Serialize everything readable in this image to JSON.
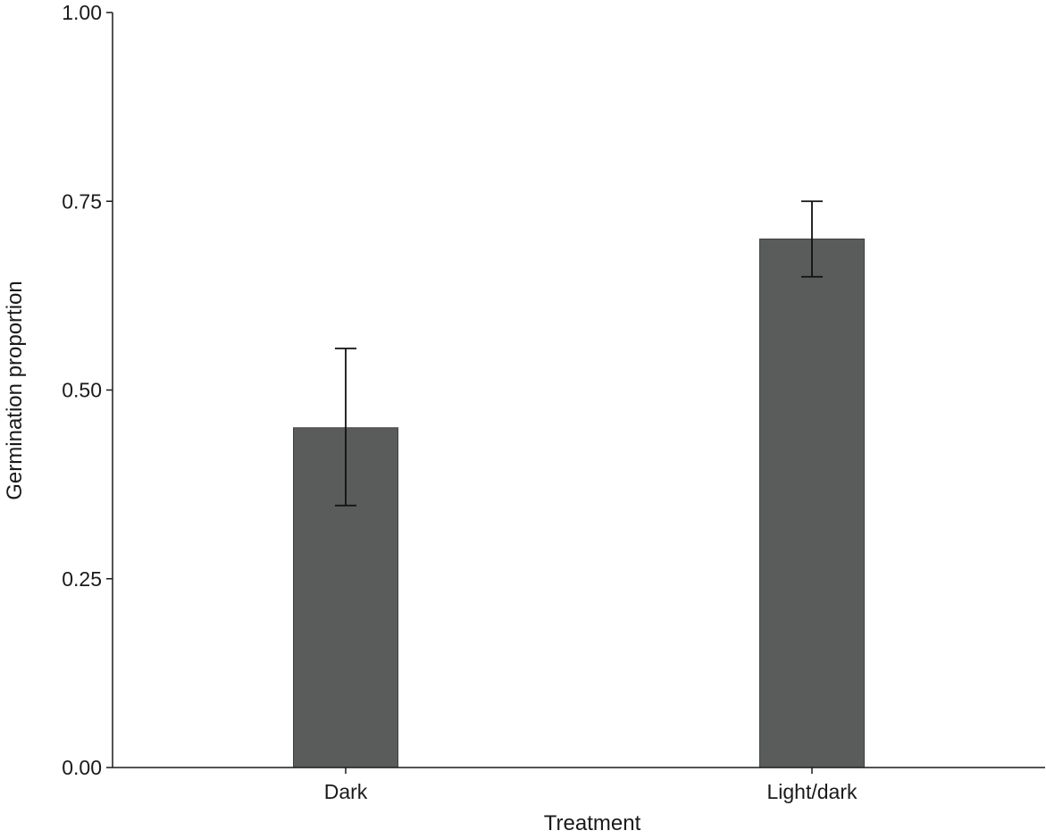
{
  "chart_data": {
    "type": "bar",
    "title": "",
    "xlabel": "Treatment",
    "ylabel": "Germination proportion",
    "categories": [
      "Dark",
      "Light/dark"
    ],
    "values": [
      0.45,
      0.7
    ],
    "error_lower": [
      0.347,
      0.65
    ],
    "error_upper": [
      0.555,
      0.75
    ],
    "ylim": [
      0,
      1
    ],
    "yticks": [
      "0.00",
      "0.25",
      "0.50",
      "0.75",
      "1.00"
    ],
    "grid": false,
    "legend": "none",
    "colors": {
      "bar_fill": "#5a5c5b",
      "bar_stroke": "#3f4140",
      "error_bar": "#111111",
      "axis": "#1a1a1a"
    }
  }
}
